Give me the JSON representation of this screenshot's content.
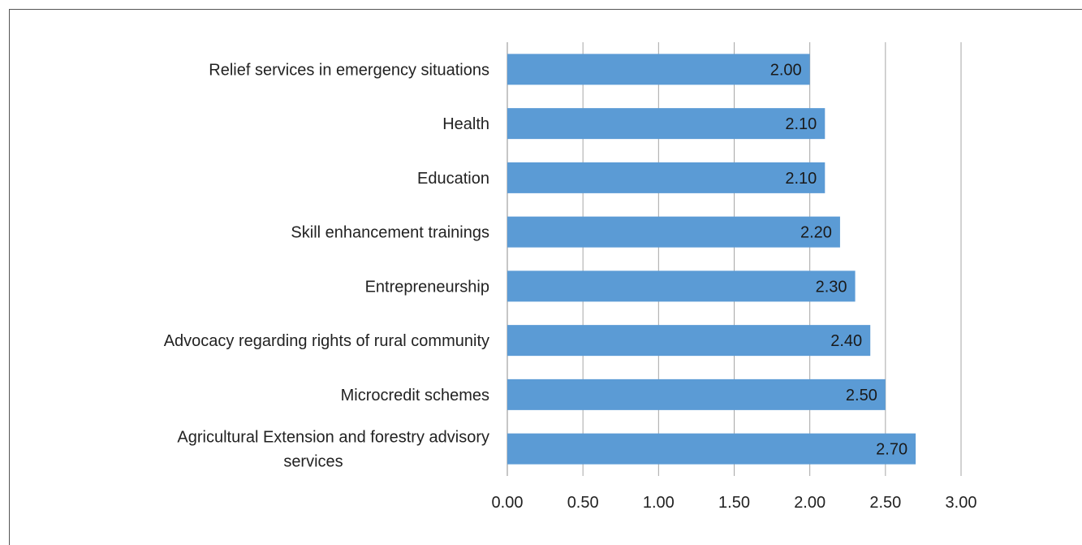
{
  "chart_data": {
    "type": "bar",
    "orientation": "horizontal",
    "title": "",
    "xlabel": "",
    "ylabel": "",
    "xlim": [
      0,
      3.0
    ],
    "x_ticks": [
      "0.00",
      "0.50",
      "1.00",
      "1.50",
      "2.00",
      "2.50",
      "3.00"
    ],
    "grid": "vertical",
    "legend": "none",
    "bar_color": "#5b9bd5",
    "categories": [
      [
        "Relief services in emergency situations"
      ],
      [
        "Health"
      ],
      [
        "Education"
      ],
      [
        "Skill enhancement trainings"
      ],
      [
        "Entrepreneurship"
      ],
      [
        "Advocacy regarding rights of rural community"
      ],
      [
        "Microcredit schemes"
      ],
      [
        "Agricultural Extension and forestry advisory",
        "services"
      ]
    ],
    "values": [
      2.0,
      2.1,
      2.1,
      2.2,
      2.3,
      2.4,
      2.5,
      2.7
    ],
    "value_labels": [
      "2.00",
      "2.10",
      "2.10",
      "2.20",
      "2.30",
      "2.40",
      "2.50",
      "2.70"
    ]
  }
}
